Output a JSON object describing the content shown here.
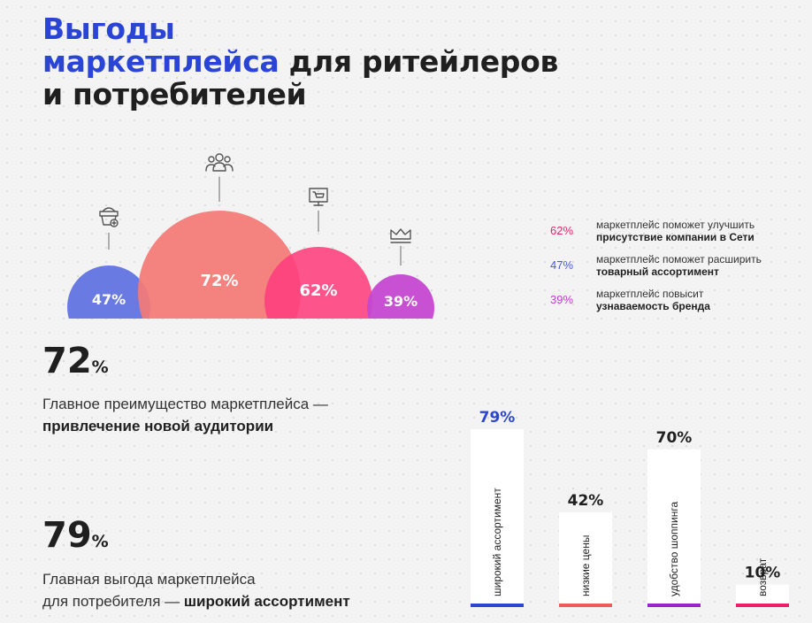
{
  "title": {
    "line1": "Выгоды",
    "line2_blue": "маркетплейса",
    "line2_rest": " для ритейлеров",
    "line3": "и потребителей"
  },
  "colors": {
    "title_blue": "#2a44d6",
    "blue": "#6a7ae3",
    "salmon": "#f47a76",
    "pink": "#ff3d7d",
    "purple": "#c448d0",
    "bar_blue": "#2c46cf",
    "bar_red": "#ef5a5a",
    "bar_purple": "#9c22c9",
    "bar_pink": "#ee1f6a"
  },
  "legend": [
    {
      "value": "62%",
      "color": "#e8246a",
      "line1": "маркетплейс поможет улучшить",
      "line2": "присутствие компании в Сети"
    },
    {
      "value": "47%",
      "color": "#4a5ad8",
      "line1": "маркетплейс поможет расширить",
      "line2": "товарный ассортимент"
    },
    {
      "value": "39%",
      "color": "#c43ad2",
      "line1": "маркетплейс повысит",
      "line2": "узнаваемость бренда"
    }
  ],
  "stat1": {
    "value": "72",
    "unit": "%",
    "desc_line1": "Главное преимущество маркетплейса —",
    "desc_line2_bold": "привлечение новой аудитории"
  },
  "stat2": {
    "value": "79",
    "unit": "%",
    "desc_line1": "Главная выгода маркетплейса",
    "desc_line2_pre": "для потребителя — ",
    "desc_line2_bold": "широкий ассортимент"
  },
  "chart_data": [
    {
      "type": "bubble",
      "title": "Выгоды маркетплейса для ритейлеров",
      "series": [
        {
          "label": "47%",
          "value": 47,
          "icon": "shopping-basket-icon",
          "color": "#6a7ae3"
        },
        {
          "label": "72%",
          "value": 72,
          "icon": "audience-icon",
          "color": "#f47a76"
        },
        {
          "label": "62%",
          "value": 62,
          "icon": "online-shop-icon",
          "color": "#ff3d7d"
        },
        {
          "label": "39%",
          "value": 39,
          "icon": "crown-icon",
          "color": "#c448d0"
        }
      ]
    },
    {
      "type": "bar",
      "title": "Выгоды маркетплейса для потребителей",
      "categories": [
        "широкий ассортимент",
        "низкие цены",
        "удобство шоппинга",
        "возврат"
      ],
      "values": [
        79,
        42,
        70,
        10
      ],
      "labels": [
        "79%",
        "42%",
        "70%",
        "10%"
      ],
      "label_colors": [
        "#2c46cf",
        "#1f1f1f",
        "#1f1f1f",
        "#1f1f1f"
      ],
      "base_colors": [
        "#2c46cf",
        "#ef5a5a",
        "#9c22c9",
        "#ee1f6a"
      ],
      "ylim": [
        0,
        79
      ]
    }
  ]
}
